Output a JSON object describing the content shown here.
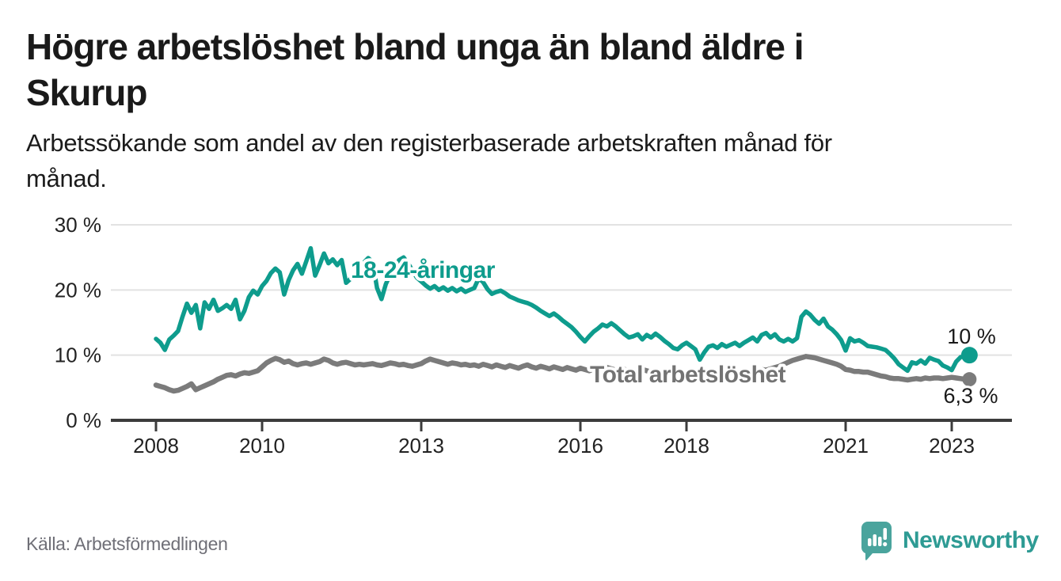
{
  "header": {
    "title_lines": [
      "Högre arbetslöshet bland unga än bland äldre i",
      "Skurup"
    ],
    "subtitle_lines": [
      "Arbetssökande som andel av den registerbaserade arbetskraften månad för",
      "månad."
    ]
  },
  "chart_data": {
    "type": "line",
    "title": "Högre arbetslöshet bland unga än bland äldre i Skurup",
    "subtitle": "Arbetssökande som andel av den registerbaserade arbetskraften månad för månad.",
    "frequency": "monthly",
    "x_start": "2008-01",
    "x_end": "2023-05",
    "x_axis": {
      "ticks": [
        "2008",
        "2010",
        "2013",
        "2016",
        "2018",
        "2021",
        "2023"
      ]
    },
    "y_axis": {
      "ticks": [
        "0 %",
        "10 %",
        "20 %",
        "30 %"
      ],
      "range": [
        0,
        30
      ],
      "gridlines": [
        10,
        20,
        30
      ]
    },
    "legend_position": "inline-labels",
    "series": [
      {
        "name": "18-24-åringar",
        "color": "#0e9c8d",
        "label_color": "#0e9c8d",
        "end_label": "10 %",
        "end_value": 10.0,
        "values": [
          12.5,
          11.9,
          10.8,
          12.4,
          13.0,
          13.7,
          15.9,
          17.9,
          16.5,
          17.7,
          14.1,
          18.1,
          17.1,
          18.5,
          16.8,
          17.2,
          17.7,
          17.1,
          18.5,
          15.5,
          16.8,
          18.9,
          19.9,
          19.3,
          20.6,
          21.4,
          22.6,
          23.3,
          22.7,
          19.3,
          21.5,
          23.0,
          24.0,
          22.5,
          24.4,
          26.4,
          22.2,
          23.8,
          25.6,
          24.1,
          24.7,
          23.8,
          24.6,
          21.1,
          21.7,
          22.5,
          23.4,
          24.2,
          24.9,
          24.3,
          20.3,
          18.6,
          20.9,
          22.4,
          23.6,
          24.6,
          25.0,
          24.1,
          23.0,
          21.9,
          21.3,
          20.7,
          20.2,
          20.6,
          20.0,
          20.4,
          19.9,
          20.3,
          19.8,
          20.2,
          19.7,
          20.0,
          20.3,
          21.8,
          21.2,
          20.1,
          19.4,
          19.7,
          19.9,
          19.5,
          19.0,
          18.7,
          18.4,
          18.2,
          18.0,
          17.7,
          17.3,
          16.8,
          16.4,
          16.0,
          16.4,
          15.9,
          15.3,
          14.8,
          14.3,
          13.6,
          12.8,
          12.1,
          12.9,
          13.6,
          14.1,
          14.7,
          14.4,
          14.9,
          14.4,
          13.8,
          13.2,
          12.7,
          12.9,
          13.2,
          12.4,
          13.1,
          12.7,
          13.3,
          12.8,
          12.2,
          11.7,
          11.1,
          10.9,
          11.5,
          11.9,
          11.4,
          10.9,
          9.3,
          10.4,
          11.3,
          11.5,
          11.1,
          11.7,
          11.3,
          11.6,
          11.9,
          11.4,
          11.9,
          12.3,
          12.7,
          12.1,
          13.1,
          13.4,
          12.7,
          13.2,
          12.4,
          12.1,
          12.5,
          12.1,
          12.6,
          15.9,
          16.7,
          16.2,
          15.4,
          14.8,
          15.6,
          14.4,
          13.9,
          13.2,
          12.3,
          10.7,
          12.6,
          12.1,
          12.3,
          11.9,
          11.4,
          11.3,
          11.2,
          11.0,
          10.8,
          10.2,
          9.5,
          8.6,
          8.1,
          7.6,
          8.9,
          8.7,
          9.2,
          8.7,
          9.6,
          9.3,
          9.1,
          8.4,
          8.1,
          7.7,
          9.0,
          9.7,
          9.8,
          10.0
        ]
      },
      {
        "name": "Total arbetslöshet",
        "color": "#7b7b7b",
        "label_color": "#737373",
        "end_label": "6,3 %",
        "end_value": 6.3,
        "values": [
          5.4,
          5.2,
          5.0,
          4.7,
          4.5,
          4.6,
          4.9,
          5.2,
          5.6,
          4.7,
          5.0,
          5.3,
          5.6,
          5.9,
          6.3,
          6.6,
          6.9,
          7.0,
          6.8,
          7.1,
          7.3,
          7.2,
          7.4,
          7.6,
          8.2,
          8.8,
          9.2,
          9.5,
          9.3,
          8.9,
          9.1,
          8.7,
          8.5,
          8.7,
          8.8,
          8.6,
          8.8,
          9.0,
          9.4,
          9.2,
          8.8,
          8.6,
          8.8,
          8.9,
          8.7,
          8.5,
          8.6,
          8.5,
          8.6,
          8.7,
          8.5,
          8.4,
          8.6,
          8.8,
          8.7,
          8.5,
          8.6,
          8.4,
          8.3,
          8.5,
          8.7,
          9.1,
          9.4,
          9.2,
          9.0,
          8.8,
          8.6,
          8.8,
          8.7,
          8.5,
          8.6,
          8.4,
          8.5,
          8.3,
          8.6,
          8.4,
          8.2,
          8.5,
          8.3,
          8.1,
          8.4,
          8.2,
          8.0,
          8.3,
          8.5,
          8.2,
          8.0,
          8.3,
          8.1,
          7.9,
          8.2,
          8.0,
          7.8,
          8.1,
          7.9,
          7.7,
          8.0,
          7.8,
          7.6,
          7.9,
          8.1,
          8.3,
          8.1,
          7.9,
          7.7,
          7.6,
          7.8,
          7.6,
          7.7,
          7.5,
          7.8,
          7.6,
          7.4,
          7.7,
          7.5,
          7.3,
          7.2,
          7.4,
          7.2,
          7.1,
          7.3,
          7.1,
          7.0,
          7.2,
          7.0,
          6.9,
          7.1,
          7.0,
          7.2,
          7.1,
          7.3,
          7.2,
          7.4,
          7.3,
          7.5,
          7.4,
          7.6,
          7.8,
          7.7,
          7.9,
          8.1,
          8.3,
          8.6,
          8.9,
          9.2,
          9.4,
          9.6,
          9.8,
          9.7,
          9.6,
          9.4,
          9.2,
          9.0,
          8.8,
          8.6,
          8.3,
          7.8,
          7.7,
          7.5,
          7.5,
          7.4,
          7.4,
          7.2,
          7.0,
          6.8,
          6.7,
          6.5,
          6.4,
          6.4,
          6.3,
          6.2,
          6.3,
          6.4,
          6.3,
          6.5,
          6.4,
          6.5,
          6.5,
          6.4,
          6.5,
          6.6,
          6.5,
          6.4,
          6.3,
          6.3
        ]
      }
    ],
    "colors": {
      "accent_teal": "#0e9c8d",
      "line_gray": "#7b7b7b",
      "gridline": "#e2e2e2",
      "axis": "#3c3c3c"
    }
  },
  "footer": {
    "source": "Källa: Arbetsförmedlingen",
    "brand_name": "Newsworthy",
    "brand_color": "#2e9b94",
    "brand_icon": "speech-bubble-bar-chart-exclamation"
  }
}
